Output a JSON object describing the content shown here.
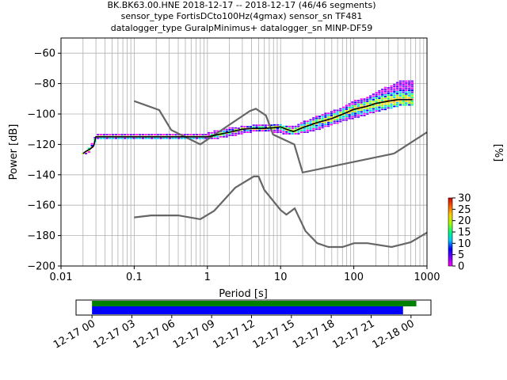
{
  "chart_data": {
    "type": "ppsd",
    "title_lines": [
      "BK.BK63.00.HNE   2018-12-17 -- 2018-12-17  (46/46 segments)",
      "sensor_type FortisDCto100Hz(4gmax) sensor_sn TF481",
      "datalogger_type GuralpMinimus+ datalogger_sn MINP-DF59"
    ],
    "xlabel": "Period [s]",
    "ylabel": "Power [dB]",
    "xscale": "log",
    "xlim": [
      0.01,
      1000
    ],
    "ylim": [
      -200,
      -50
    ],
    "x_tick_values": [
      0.01,
      0.1,
      1,
      10,
      100,
      1000
    ],
    "x_tick_labels": [
      "0.01",
      "0.1",
      "1",
      "10",
      "100",
      "1000"
    ],
    "y_tick_values": [
      -200,
      -180,
      -160,
      -140,
      -120,
      -100,
      -80,
      -60
    ],
    "y_tick_labels": [
      "−200",
      "−180",
      "−160",
      "−140",
      "−120",
      "−100",
      "−80",
      "−60"
    ],
    "grid": true,
    "noise_models": {
      "high": {
        "x": [
          0.1,
          0.22,
          0.32,
          0.8,
          3.8,
          4.6,
          6.3,
          7.9,
          15.4,
          20,
          354.8
        ],
        "y": [
          -91.5,
          -97.4,
          -110.5,
          -120,
          -98,
          -96.5,
          -101,
          -113.5,
          -120,
          -138.5,
          -126
        ]
      },
      "high_tail": {
        "x": [
          354.8,
          1000
        ],
        "y": [
          -126,
          -112
        ]
      },
      "low": {
        "x": [
          0.1,
          0.17,
          0.4,
          0.8,
          1.24,
          2.4,
          4.3,
          5.0,
          6.0,
          10,
          12,
          15.6,
          21.9,
          31.6,
          45,
          70,
          101,
          154,
          328,
          600,
          1000
        ],
        "y": [
          -168,
          -166.7,
          -166.7,
          -169.2,
          -163.7,
          -148.5,
          -141.1,
          -141.1,
          -150,
          -163.2,
          -166.2,
          -162.1,
          -177.1,
          -185,
          -187.5,
          -187.5,
          -185,
          -185,
          -187.5,
          -184.4,
          -178
        ]
      }
    },
    "median": {
      "x": [
        0.02,
        0.022,
        0.025,
        0.028,
        0.03,
        1.0,
        2.0,
        3.0,
        4.0,
        6.0,
        8.0,
        10.0,
        12.0,
        15.0,
        20.0,
        30.0,
        50.0,
        80.0,
        100.0,
        150.0,
        200.0,
        300.0,
        400.0,
        500.0,
        630.0
      ],
      "y": [
        -126,
        -124.5,
        -123,
        -121,
        -115,
        -115,
        -112,
        -110,
        -109.5,
        -109.5,
        -109,
        -108.5,
        -110,
        -111.5,
        -109,
        -106,
        -103,
        -99,
        -97,
        -95,
        -93,
        -91.5,
        -90.5,
        -90.5,
        -90.5
      ]
    },
    "spread": {
      "x": [
        0.02,
        0.025,
        0.03,
        0.05,
        0.1,
        0.3,
        1.0,
        2.0,
        4.0,
        8.0,
        15.0,
        30.0,
        60.0,
        100.0,
        200.0,
        400.0,
        630.0
      ],
      "ymin": [
        -126,
        -124,
        -116,
        -116,
        -116,
        -116,
        -116,
        -114,
        -111,
        -111,
        -113,
        -110,
        -105,
        -102,
        -98,
        -94,
        -94
      ],
      "ymax": [
        -126,
        -122,
        -114,
        -113,
        -113,
        -113,
        -113,
        -110,
        -108,
        -107,
        -108,
        -102,
        -97,
        -92,
        -86,
        -79,
        -78
      ]
    },
    "colorbar": {
      "label": "[%]",
      "range": [
        0,
        30
      ],
      "tick_values": [
        0,
        5,
        10,
        15,
        20,
        25,
        30
      ],
      "tick_labels": [
        "0",
        "5",
        "10",
        "15",
        "20",
        "25",
        "30"
      ],
      "colormap": [
        "#ffffff",
        "#ff00ff",
        "#7a00ff",
        "#0000ff",
        "#00c8ff",
        "#00ff80",
        "#a0ff00",
        "#ffd000",
        "#ff6000",
        "#d00000"
      ]
    },
    "coverage": {
      "tick_labels": [
        "12-17 00",
        "12-17 03",
        "12-17 06",
        "12-17 09",
        "12-17 12",
        "12-17 15",
        "12-17 18",
        "12-17 21",
        "12-18 00"
      ],
      "range_hours": [
        -1.2,
        25.5
      ],
      "data_bar": {
        "start_hours": 0,
        "end_hours": 24.4,
        "color": "#008000"
      },
      "processed_bar": {
        "start_hours": 0,
        "end_hours": 23.4,
        "color": "#0000ff"
      }
    },
    "colors": {
      "noise_model": "#666666",
      "median": "#000000",
      "grid": "#b0b0b0"
    }
  }
}
